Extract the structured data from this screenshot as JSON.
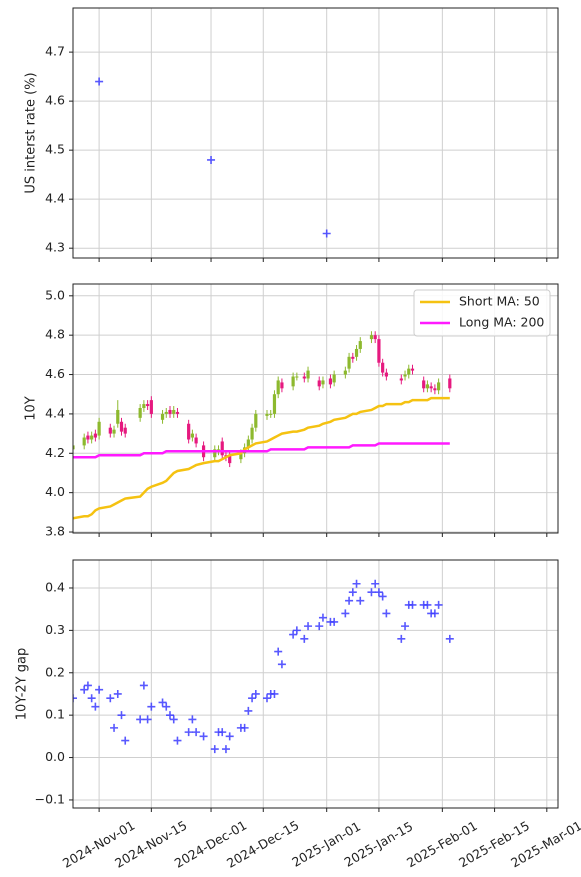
{
  "chart_data": [
    {
      "type": "scatter",
      "ylabel": "US interst rate (%)",
      "x": [
        "2024-11-01",
        "2024-12-01",
        "2025-01-01"
      ],
      "values": [
        4.64,
        4.48,
        4.33
      ],
      "color": "#3b3bff",
      "marker": "+",
      "ylim": [
        4.28,
        4.79
      ],
      "yticks": [
        4.3,
        4.4,
        4.5,
        4.6,
        4.7
      ],
      "grid": true
    },
    {
      "type": "candlestick",
      "ylabel": "10Y",
      "x": [
        "2024-10-25",
        "2024-10-28",
        "2024-10-29",
        "2024-10-30",
        "2024-10-31",
        "2024-11-01",
        "2024-11-04",
        "2024-11-05",
        "2024-11-06",
        "2024-11-07",
        "2024-11-08",
        "2024-11-12",
        "2024-11-13",
        "2024-11-14",
        "2024-11-15",
        "2024-11-18",
        "2024-11-19",
        "2024-11-20",
        "2024-11-21",
        "2024-11-22",
        "2024-11-25",
        "2024-11-26",
        "2024-11-27",
        "2024-11-29",
        "2024-12-02",
        "2024-12-03",
        "2024-12-04",
        "2024-12-05",
        "2024-12-06",
        "2024-12-09",
        "2024-12-10",
        "2024-12-11",
        "2024-12-12",
        "2024-12-13",
        "2024-12-16",
        "2024-12-17",
        "2024-12-18",
        "2024-12-19",
        "2024-12-20",
        "2024-12-23",
        "2024-12-24",
        "2024-12-26",
        "2024-12-27",
        "2024-12-30",
        "2024-12-31",
        "2025-01-02",
        "2025-01-03",
        "2025-01-06",
        "2025-01-07",
        "2025-01-08",
        "2025-01-09",
        "2025-01-10",
        "2025-01-13",
        "2025-01-14",
        "2025-01-15",
        "2025-01-16",
        "2025-01-17",
        "2025-01-21",
        "2025-01-22",
        "2025-01-23",
        "2025-01-24",
        "2025-01-27",
        "2025-01-28",
        "2025-01-29",
        "2025-01-30",
        "2025-01-31",
        "2025-02-03"
      ],
      "open": [
        4.22,
        4.24,
        4.29,
        4.27,
        4.3,
        4.29,
        4.33,
        4.3,
        4.35,
        4.36,
        4.33,
        4.38,
        4.43,
        4.45,
        4.47,
        4.37,
        4.4,
        4.42,
        4.4,
        4.41,
        4.35,
        4.28,
        4.28,
        4.24,
        4.18,
        4.21,
        4.26,
        4.19,
        4.19,
        4.17,
        4.2,
        4.23,
        4.27,
        4.33,
        4.39,
        4.4,
        4.4,
        4.5,
        4.56,
        4.54,
        4.59,
        4.59,
        4.58,
        4.57,
        4.55,
        4.58,
        4.56,
        4.6,
        4.63,
        4.69,
        4.69,
        4.73,
        4.78,
        4.8,
        4.78,
        4.66,
        4.61,
        4.58,
        4.59,
        4.6,
        4.63,
        4.57,
        4.53,
        4.54,
        4.53,
        4.52,
        4.58
      ],
      "high": [
        4.26,
        4.3,
        4.31,
        4.31,
        4.32,
        4.38,
        4.35,
        4.34,
        4.47,
        4.38,
        4.35,
        4.45,
        4.47,
        4.47,
        4.49,
        4.42,
        4.43,
        4.44,
        4.44,
        4.43,
        4.37,
        4.32,
        4.3,
        4.26,
        4.24,
        4.24,
        4.28,
        4.21,
        4.21,
        4.22,
        4.25,
        4.29,
        4.35,
        4.42,
        4.42,
        4.42,
        4.52,
        4.59,
        4.58,
        4.61,
        4.61,
        4.61,
        4.64,
        4.59,
        4.59,
        4.6,
        4.62,
        4.64,
        4.71,
        4.71,
        4.75,
        4.79,
        4.82,
        4.82,
        4.8,
        4.68,
        4.63,
        4.6,
        4.62,
        4.65,
        4.65,
        4.59,
        4.57,
        4.56,
        4.55,
        4.58,
        4.6
      ],
      "low": [
        4.2,
        4.22,
        4.25,
        4.25,
        4.26,
        4.27,
        4.28,
        4.28,
        4.33,
        4.29,
        4.28,
        4.36,
        4.41,
        4.42,
        4.38,
        4.35,
        4.38,
        4.38,
        4.38,
        4.38,
        4.25,
        4.26,
        4.23,
        4.16,
        4.16,
        4.19,
        4.17,
        4.16,
        4.13,
        4.15,
        4.18,
        4.21,
        4.25,
        4.31,
        4.37,
        4.38,
        4.38,
        4.48,
        4.51,
        4.52,
        4.57,
        4.56,
        4.56,
        4.52,
        4.53,
        4.53,
        4.54,
        4.58,
        4.61,
        4.66,
        4.67,
        4.71,
        4.76,
        4.76,
        4.64,
        4.59,
        4.57,
        4.55,
        4.57,
        4.58,
        4.6,
        4.51,
        4.51,
        4.51,
        4.5,
        4.5,
        4.51
      ],
      "close": [
        4.24,
        4.28,
        4.27,
        4.29,
        4.28,
        4.36,
        4.3,
        4.32,
        4.42,
        4.31,
        4.3,
        4.43,
        4.45,
        4.44,
        4.4,
        4.4,
        4.41,
        4.4,
        4.42,
        4.4,
        4.27,
        4.3,
        4.25,
        4.18,
        4.22,
        4.22,
        4.19,
        4.18,
        4.15,
        4.2,
        4.23,
        4.27,
        4.33,
        4.4,
        4.4,
        4.4,
        4.5,
        4.57,
        4.53,
        4.59,
        4.59,
        4.58,
        4.62,
        4.54,
        4.57,
        4.55,
        4.6,
        4.62,
        4.69,
        4.68,
        4.73,
        4.77,
        4.8,
        4.78,
        4.66,
        4.61,
        4.59,
        4.57,
        4.6,
        4.63,
        4.62,
        4.53,
        4.55,
        4.53,
        4.52,
        4.56,
        4.53
      ],
      "up_color": "#8db92e",
      "down_color": "#e6197f",
      "series": [
        {
          "name": "Short MA: 50",
          "color": "#f5c211",
          "values": [
            3.87,
            3.88,
            3.88,
            3.89,
            3.91,
            3.92,
            3.93,
            3.94,
            3.95,
            3.96,
            3.97,
            3.98,
            4.0,
            4.02,
            4.03,
            4.05,
            4.06,
            4.08,
            4.1,
            4.11,
            4.12,
            4.13,
            4.14,
            4.15,
            4.16,
            4.16,
            4.17,
            4.18,
            4.19,
            4.2,
            4.22,
            4.23,
            4.24,
            4.25,
            4.26,
            4.27,
            4.28,
            4.29,
            4.3,
            4.31,
            4.31,
            4.32,
            4.33,
            4.34,
            4.35,
            4.36,
            4.37,
            4.38,
            4.39,
            4.4,
            4.4,
            4.41,
            4.42,
            4.43,
            4.44,
            4.44,
            4.45,
            4.45,
            4.46,
            4.46,
            4.47,
            4.47,
            4.47,
            4.48,
            4.48,
            4.48,
            4.48
          ]
        },
        {
          "name": "Long MA: 200",
          "color": "#ff1aff",
          "values": [
            4.18,
            4.18,
            4.18,
            4.18,
            4.18,
            4.19,
            4.19,
            4.19,
            4.19,
            4.19,
            4.19,
            4.19,
            4.2,
            4.2,
            4.2,
            4.2,
            4.21,
            4.21,
            4.21,
            4.21,
            4.21,
            4.21,
            4.21,
            4.21,
            4.21,
            4.21,
            4.21,
            4.21,
            4.21,
            4.21,
            4.21,
            4.21,
            4.21,
            4.21,
            4.21,
            4.22,
            4.22,
            4.22,
            4.22,
            4.22,
            4.22,
            4.22,
            4.23,
            4.23,
            4.23,
            4.23,
            4.23,
            4.23,
            4.23,
            4.24,
            4.24,
            4.24,
            4.24,
            4.24,
            4.25,
            4.25,
            4.25,
            4.25,
            4.25,
            4.25,
            4.25,
            4.25,
            4.25,
            4.25,
            4.25,
            4.25,
            4.25
          ]
        }
      ],
      "legend": "upper right",
      "ylim": [
        3.795,
        5.06
      ],
      "yticks": [
        3.8,
        {
          "value": 4,
          "label": "4.0"
        },
        4.2,
        4.4,
        4.6,
        4.8,
        {
          "value": 5,
          "label": "5.0"
        }
      ],
      "grid": true
    },
    {
      "type": "scatter",
      "ylabel": "10Y-2Y gap",
      "x": [
        "2024-10-25",
        "2024-10-28",
        "2024-10-29",
        "2024-10-30",
        "2024-10-31",
        "2024-11-01",
        "2024-11-04",
        "2024-11-05",
        "2024-11-06",
        "2024-11-07",
        "2024-11-08",
        "2024-11-12",
        "2024-11-13",
        "2024-11-14",
        "2024-11-15",
        "2024-11-18",
        "2024-11-19",
        "2024-11-20",
        "2024-11-21",
        "2024-11-22",
        "2024-11-25",
        "2024-11-26",
        "2024-11-27",
        "2024-11-29",
        "2024-12-02",
        "2024-12-03",
        "2024-12-04",
        "2024-12-05",
        "2024-12-06",
        "2024-12-09",
        "2024-12-10",
        "2024-12-11",
        "2024-12-12",
        "2024-12-13",
        "2024-12-16",
        "2024-12-17",
        "2024-12-18",
        "2024-12-19",
        "2024-12-20",
        "2024-12-23",
        "2024-12-24",
        "2024-12-26",
        "2024-12-27",
        "2024-12-30",
        "2024-12-31",
        "2025-01-02",
        "2025-01-03",
        "2025-01-06",
        "2025-01-07",
        "2025-01-08",
        "2025-01-09",
        "2025-01-10",
        "2025-01-13",
        "2025-01-14",
        "2025-01-15",
        "2025-01-16",
        "2025-01-17",
        "2025-01-21",
        "2025-01-22",
        "2025-01-23",
        "2025-01-24",
        "2025-01-27",
        "2025-01-28",
        "2025-01-29",
        "2025-01-30",
        "2025-01-31",
        "2025-02-03"
      ],
      "values": [
        0.14,
        0.16,
        0.17,
        0.14,
        0.12,
        0.16,
        0.14,
        0.07,
        0.15,
        0.1,
        0.04,
        0.09,
        0.17,
        0.09,
        0.12,
        0.13,
        0.12,
        0.1,
        0.09,
        0.04,
        0.06,
        0.09,
        0.06,
        0.05,
        0.02,
        0.06,
        0.06,
        0.02,
        0.05,
        0.07,
        0.07,
        0.11,
        0.14,
        0.15,
        0.14,
        0.15,
        0.15,
        0.25,
        0.22,
        0.29,
        0.3,
        0.28,
        0.31,
        0.31,
        0.33,
        0.32,
        0.32,
        0.34,
        0.37,
        0.39,
        0.41,
        0.37,
        0.39,
        0.41,
        0.39,
        0.38,
        0.34,
        0.28,
        0.31,
        0.36,
        0.36,
        0.36,
        0.36,
        0.34,
        0.34,
        0.36,
        0.28
      ],
      "color": "#3b3bff",
      "marker": "+",
      "ylim": [
        -0.119,
        0.466
      ],
      "yticks": [
        {
          "value": -0.1,
          "label": "−0.1"
        },
        {
          "value": 0,
          "label": "0.0"
        },
        0.1,
        0.2,
        0.3,
        0.4
      ],
      "grid": true,
      "xlim": [
        "2024-10-25",
        "2025-03-04"
      ],
      "xticks": [
        {
          "value": "2024-11-01",
          "label": "2024-Nov-01"
        },
        {
          "value": "2024-11-15",
          "label": "2024-Nov-15"
        },
        {
          "value": "2024-12-01",
          "label": "2024-Dec-01"
        },
        {
          "value": "2024-12-15",
          "label": "2024-Dec-15"
        },
        {
          "value": "2025-01-01",
          "label": "2025-Jan-01"
        },
        {
          "value": "2025-01-15",
          "label": "2025-Jan-15"
        },
        {
          "value": "2025-02-01",
          "label": "2025-Feb-01"
        },
        {
          "value": "2025-02-15",
          "label": "2025-Feb-15"
        },
        {
          "value": "2025-03-01",
          "label": "2025-Mar-01"
        }
      ]
    }
  ]
}
